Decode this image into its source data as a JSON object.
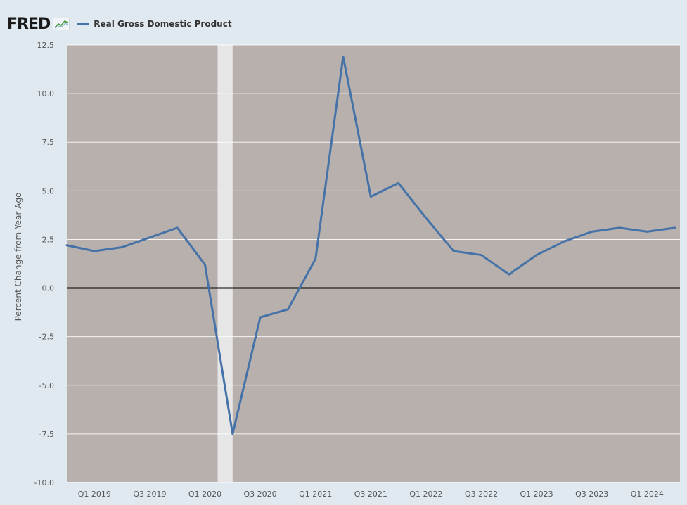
{
  "header": {
    "logo_text": "FRED",
    "logo_icon": "fred-chart-icon",
    "legend_label": "Real Gross Domestic Product",
    "legend_color": "#4572a7"
  },
  "colors": {
    "page_background": "#e1e9f0",
    "plot_background": "#b8b0ad",
    "recession_band": "#e6e6e6",
    "gridline": "#ffffff",
    "zero_line": "#000000",
    "series": "#4572a7"
  },
  "chart_data": {
    "type": "line",
    "title": "",
    "xlabel": "",
    "ylabel": "Percent Change from Year Ago",
    "ylim": [
      -10,
      12.5
    ],
    "yticks": [
      "12.5",
      "10.0",
      "7.5",
      "5.0",
      "2.5",
      "0.0",
      "-2.5",
      "-5.0",
      "-7.5",
      "-10.0"
    ],
    "ytick_values": [
      12.5,
      10,
      7.5,
      5,
      2.5,
      0,
      -2.5,
      -5,
      -7.5,
      -10
    ],
    "xticks": [
      "Q1 2019",
      "Q3 2019",
      "Q1 2020",
      "Q3 2020",
      "Q1 2021",
      "Q3 2021",
      "Q1 2022",
      "Q3 2022",
      "Q1 2023",
      "Q3 2023",
      "Q1 2024"
    ],
    "x_period_start": "Q4 2018",
    "x_period_end": "Q2 2024",
    "recession_shading": {
      "from": "Q1 2020",
      "to": "Q2 2020"
    },
    "grid": true,
    "legend": "top-left",
    "series": [
      {
        "name": "Real Gross Domestic Product",
        "color": "#4572a7",
        "x": [
          "Q4 2018",
          "Q1 2019",
          "Q2 2019",
          "Q3 2019",
          "Q4 2019",
          "Q1 2020",
          "Q2 2020",
          "Q3 2020",
          "Q4 2020",
          "Q1 2021",
          "Q2 2021",
          "Q3 2021",
          "Q4 2021",
          "Q1 2022",
          "Q2 2022",
          "Q3 2022",
          "Q4 2022",
          "Q1 2023",
          "Q2 2023",
          "Q3 2023",
          "Q4 2023",
          "Q1 2024",
          "Q2 2024"
        ],
        "values": [
          2.2,
          1.9,
          2.1,
          2.6,
          3.1,
          1.2,
          -7.5,
          -1.5,
          -1.1,
          1.5,
          11.9,
          4.7,
          5.4,
          3.6,
          1.9,
          1.7,
          0.7,
          1.7,
          2.4,
          2.9,
          3.1,
          2.9,
          3.1
        ]
      }
    ]
  }
}
